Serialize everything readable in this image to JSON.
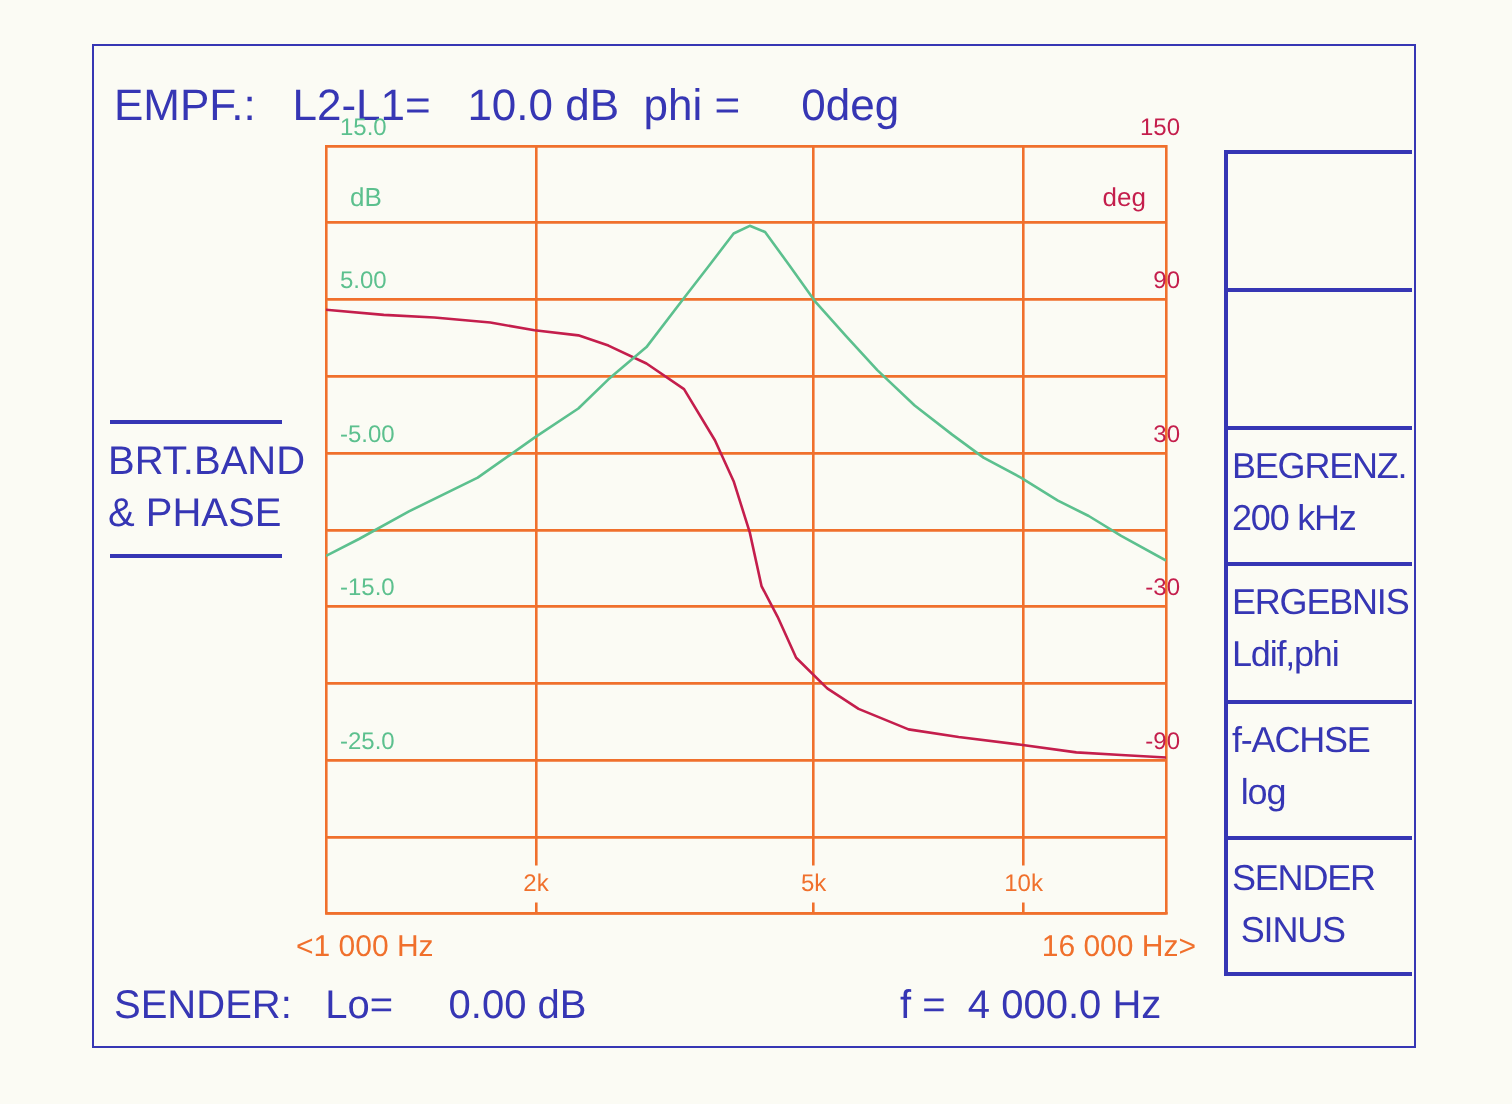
{
  "chart_data": {
    "type": "line",
    "title": "EMPF.:   L2-L1=   10.0 dB  phi =     0deg",
    "ylabel": "dB",
    "y2label": "deg",
    "log": "x",
    "grid": true,
    "legend": false,
    "xlim": [
      1000,
      16000
    ],
    "xticks": [
      {
        "value": 2000,
        "label": "2k"
      },
      {
        "value": 5000,
        "label": "5k"
      },
      {
        "value": 10000,
        "label": "10k"
      }
    ],
    "ylim": [
      -35,
      15
    ],
    "yticks": [
      {
        "value": 15,
        "label": "15.0"
      },
      {
        "value": 10,
        "label": null
      },
      {
        "value": 5,
        "label": "5.00"
      },
      {
        "value": 0,
        "label": null
      },
      {
        "value": -5,
        "label": "-5.00"
      },
      {
        "value": -10,
        "label": null
      },
      {
        "value": -15,
        "label": "-15.0"
      },
      {
        "value": -20,
        "label": null
      },
      {
        "value": -25,
        "label": "-25.0"
      },
      {
        "value": -30,
        "label": null
      },
      {
        "value": -35,
        "label": null
      }
    ],
    "y2lim": [
      -150,
      150
    ],
    "y2ticks": [
      150,
      {
        "value": 120,
        "label": null
      },
      90,
      {
        "value": 60,
        "label": null
      },
      30,
      {
        "value": 0,
        "label": null
      },
      -30,
      {
        "value": -60,
        "label": null
      },
      -90,
      {
        "value": -120,
        "label": null
      },
      {
        "value": -150,
        "label": null
      }
    ],
    "series": [
      {
        "color": "#5cc08e",
        "x": [
          1000,
          1115,
          1315,
          1650,
          1990,
          2300,
          2540,
          2880,
          3260,
          3540,
          3840,
          4050,
          4260,
          4620,
          5020,
          5570,
          6170,
          6980,
          7900,
          8760,
          9910,
          11200,
          12400,
          13800,
          16000
        ],
        "values": [
          -11.7,
          -10.6,
          -8.8,
          -6.6,
          -4.0,
          -2.1,
          -0.2,
          1.9,
          5.1,
          7.2,
          9.3,
          9.8,
          9.4,
          7.2,
          4.9,
          2.6,
          0.4,
          -1.9,
          -3.8,
          -5.3,
          -6.6,
          -8.1,
          -9.1,
          -10.4,
          -12.0
        ]
      },
      {
        "color": "#c41e4c",
        "axis": "y2",
        "x": [
          1000,
          1210,
          1430,
          1720,
          1990,
          2300,
          2540,
          2880,
          3260,
          3610,
          3840,
          4050,
          4210,
          4440,
          4720,
          5230,
          5800,
          6840,
          8070,
          9910,
          11900,
          13800,
          16000
        ],
        "values": [
          86,
          84,
          83,
          81,
          78,
          76,
          72,
          65,
          55,
          35,
          19,
          -1,
          -22,
          -34,
          -50,
          -62,
          -70,
          -78,
          -81,
          -84,
          -87,
          -88,
          -89
        ]
      }
    ],
    "annotations": [
      "<1 000 Hz",
      "16 000 Hz>",
      "SENDER:   Lo=     0.00 dB",
      "f =  4 000.0 Hz",
      "BRT.BAND\n& PHASE",
      "BEGRENZ.\n200 kHz",
      "ERGEBNIS\nLdif,phi",
      "f-ACHSE\n log",
      "SENDER\n SINUS"
    ]
  }
}
